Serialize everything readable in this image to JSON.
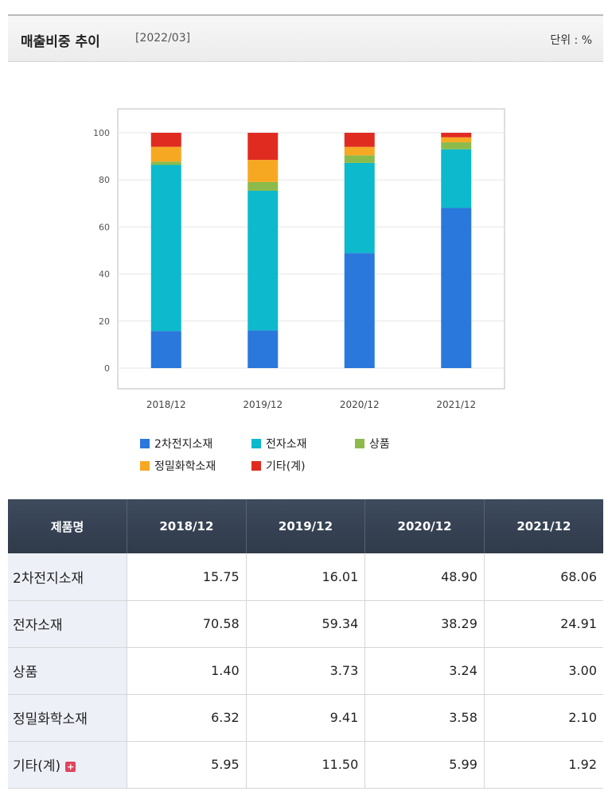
{
  "header": {
    "title": "매출비중 추이",
    "date": "[2022/03]",
    "unit": "단위 : %"
  },
  "chart_data": {
    "type": "bar",
    "stacked": true,
    "categories": [
      "2018/12",
      "2019/12",
      "2020/12",
      "2021/12"
    ],
    "series": [
      {
        "name": "2차전지소재",
        "color": "#2a78dc",
        "values": [
          15.75,
          16.01,
          48.9,
          68.06
        ]
      },
      {
        "name": "전자소재",
        "color": "#0db9cc",
        "values": [
          70.58,
          59.34,
          38.29,
          24.91
        ]
      },
      {
        "name": "상품",
        "color": "#8cbb4c",
        "values": [
          1.4,
          3.73,
          3.24,
          3.0
        ]
      },
      {
        "name": "정밀화학소재",
        "color": "#f7a823",
        "values": [
          6.32,
          9.41,
          3.58,
          2.1
        ]
      },
      {
        "name": "기타(계)",
        "color": "#e02b20",
        "values": [
          5.95,
          11.5,
          5.99,
          1.92
        ]
      }
    ],
    "ylim": [
      0,
      100
    ],
    "yticks": [
      "0",
      "20",
      "40",
      "60",
      "80",
      "100"
    ],
    "grid": true,
    "legend_position": "bottom"
  },
  "table": {
    "headers": [
      "제품명",
      "2018/12",
      "2019/12",
      "2020/12",
      "2021/12"
    ],
    "rows": [
      {
        "name": "2차전지소재",
        "values": [
          "15.75",
          "16.01",
          "48.90",
          "68.06"
        ]
      },
      {
        "name": "전자소재",
        "values": [
          "70.58",
          "59.34",
          "38.29",
          "24.91"
        ]
      },
      {
        "name": "상품",
        "values": [
          "1.40",
          "3.73",
          "3.24",
          "3.00"
        ]
      },
      {
        "name": "정밀화학소재",
        "values": [
          "6.32",
          "9.41",
          "3.58",
          "2.10"
        ]
      },
      {
        "name": "기타(계)",
        "values": [
          "5.95",
          "11.50",
          "5.99",
          "1.92"
        ],
        "expandable": true
      }
    ],
    "expand_icon": "plus-icon"
  }
}
